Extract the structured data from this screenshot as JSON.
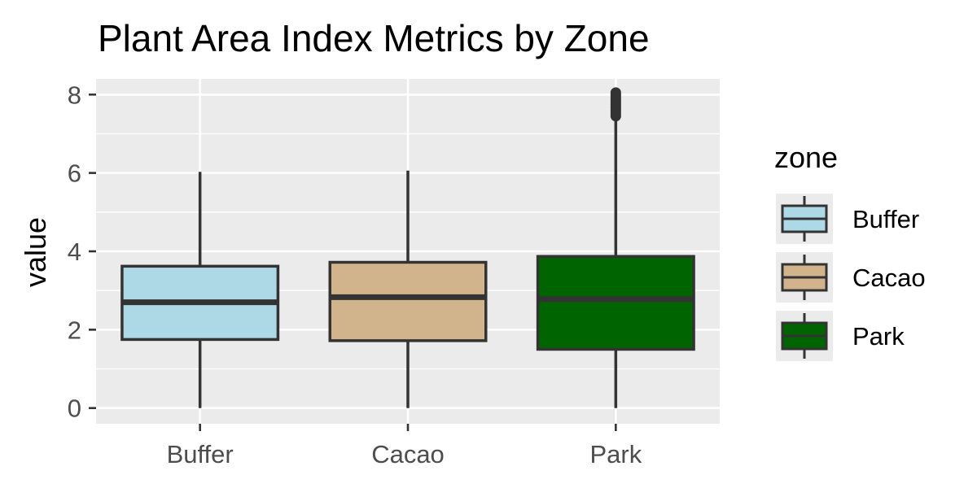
{
  "chart_data": {
    "type": "box",
    "title": "Plant Area Index Metrics by Zone",
    "xlabel": "",
    "ylabel": "value",
    "categories": [
      "Buffer",
      "Cacao",
      "Park"
    ],
    "ylim": [
      -0.4,
      8.4
    ],
    "yticks": [
      0,
      2,
      4,
      6,
      8
    ],
    "grid": true,
    "legend": {
      "title": "zone",
      "position": "right",
      "entries": [
        "Buffer",
        "Cacao",
        "Park"
      ]
    },
    "colors": {
      "Buffer": "#add8e6",
      "Cacao": "#d2b48c",
      "Park": "#006400",
      "outline": "#333333",
      "panel": "#ebebeb",
      "grid": "#ffffff"
    },
    "series": [
      {
        "category": "Buffer",
        "min": 0,
        "q1": 1.75,
        "median": 2.7,
        "q3": 3.62,
        "max": 6.03,
        "outliers": []
      },
      {
        "category": "Cacao",
        "min": 0,
        "q1": 1.72,
        "median": 2.83,
        "q3": 3.72,
        "max": 6.06,
        "outliers": []
      },
      {
        "category": "Park",
        "min": 0,
        "q1": 1.5,
        "median": 2.78,
        "q3": 3.87,
        "max": 7.4,
        "outliers": [
          7.45,
          7.5,
          7.55,
          7.6,
          7.65,
          7.7,
          7.75,
          7.8,
          7.85,
          7.9,
          7.95,
          8.0,
          8.05
        ]
      }
    ]
  }
}
